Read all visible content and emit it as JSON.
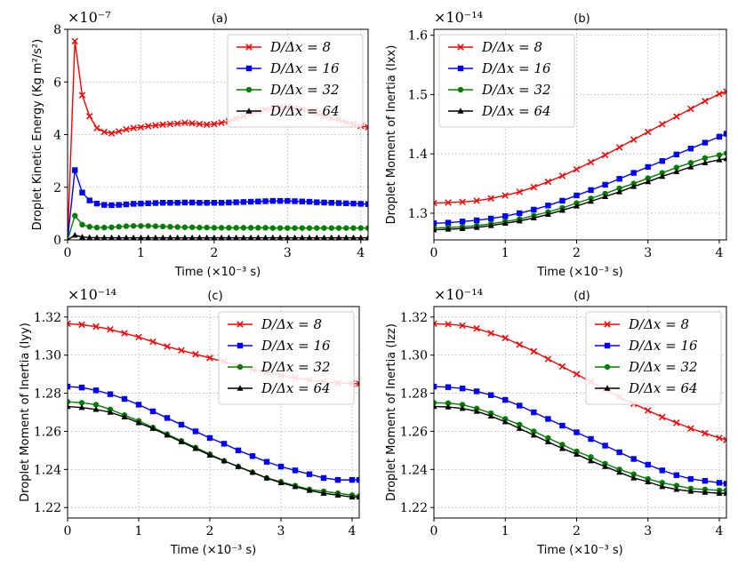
{
  "legend_labels": [
    "D/Δx = 8",
    "D/Δx = 16",
    "D/Δx = 32",
    "D/Δx = 64"
  ],
  "colors": {
    "series": [
      "#ff0000",
      "#0000ff",
      "#008000",
      "#000000"
    ]
  },
  "chart_data": [
    {
      "type": "line",
      "title": "(a)",
      "xlabel": "Time (×10⁻³ s)",
      "ylabel": "Droplet Kinetic Energy (Kg m²/s²)",
      "multiplier": "×10⁻⁷",
      "xlim": [
        0,
        4.1
      ],
      "ylim": [
        0,
        8
      ],
      "xticks": [
        0,
        1,
        2,
        3,
        4
      ],
      "yticks": [
        0,
        2,
        4,
        6,
        8
      ],
      "ytick_labels": [
        "0",
        "2",
        "4",
        "6",
        "8"
      ],
      "legend": "top-right",
      "x": [
        0,
        0.1,
        0.2,
        0.3,
        0.4,
        0.5,
        0.6,
        0.7,
        0.8,
        0.9,
        1.0,
        1.1,
        1.2,
        1.3,
        1.4,
        1.5,
        1.6,
        1.7,
        1.8,
        1.9,
        2.0,
        2.1,
        2.2,
        2.3,
        2.4,
        2.5,
        2.6,
        2.7,
        2.8,
        2.9,
        3.0,
        3.1,
        3.2,
        3.3,
        3.4,
        3.5,
        3.6,
        3.7,
        3.8,
        3.9,
        4.0,
        4.1
      ],
      "series": [
        {
          "name": "D/Δx = 8",
          "marker": "x",
          "values": [
            0,
            7.55,
            5.5,
            4.7,
            4.25,
            4.1,
            4.05,
            4.12,
            4.2,
            4.25,
            4.28,
            4.32,
            4.35,
            4.38,
            4.4,
            4.42,
            4.45,
            4.43,
            4.4,
            4.38,
            4.4,
            4.45,
            4.5,
            4.6,
            4.7,
            4.8,
            4.88,
            4.95,
            5.0,
            5.05,
            5.05,
            5.0,
            4.95,
            4.88,
            4.8,
            4.72,
            4.62,
            4.55,
            4.47,
            4.4,
            4.33,
            4.28
          ]
        },
        {
          "name": "D/Δx = 16",
          "marker": "square",
          "values": [
            0,
            2.65,
            1.8,
            1.5,
            1.38,
            1.33,
            1.32,
            1.33,
            1.35,
            1.37,
            1.38,
            1.39,
            1.4,
            1.41,
            1.41,
            1.41,
            1.42,
            1.42,
            1.41,
            1.41,
            1.41,
            1.41,
            1.42,
            1.43,
            1.44,
            1.45,
            1.46,
            1.47,
            1.48,
            1.48,
            1.48,
            1.47,
            1.46,
            1.45,
            1.43,
            1.42,
            1.41,
            1.4,
            1.39,
            1.38,
            1.37,
            1.36
          ]
        },
        {
          "name": "D/Δx = 32",
          "marker": "circle",
          "values": [
            0,
            0.92,
            0.58,
            0.5,
            0.47,
            0.47,
            0.48,
            0.5,
            0.52,
            0.53,
            0.53,
            0.53,
            0.52,
            0.51,
            0.5,
            0.49,
            0.48,
            0.48,
            0.47,
            0.47,
            0.46,
            0.46,
            0.46,
            0.46,
            0.46,
            0.46,
            0.46,
            0.46,
            0.45,
            0.45,
            0.45,
            0.45,
            0.45,
            0.45,
            0.45,
            0.45,
            0.45,
            0.45,
            0.45,
            0.45,
            0.45,
            0.45
          ]
        },
        {
          "name": "D/Δx = 64",
          "marker": "triangle",
          "values": [
            0,
            0.18,
            0.11,
            0.09,
            0.08,
            0.08,
            0.08,
            0.08,
            0.08,
            0.08,
            0.08,
            0.08,
            0.08,
            0.08,
            0.08,
            0.08,
            0.08,
            0.08,
            0.08,
            0.08,
            0.08,
            0.08,
            0.08,
            0.08,
            0.08,
            0.08,
            0.08,
            0.08,
            0.08,
            0.08,
            0.08,
            0.08,
            0.08,
            0.08,
            0.08,
            0.08,
            0.08,
            0.08,
            0.08,
            0.08,
            0.08,
            0.08
          ]
        }
      ]
    },
    {
      "type": "line",
      "title": "(b)",
      "xlabel": "Time (×10⁻³ s)",
      "ylabel": "Droplet Moment of Inertia (Ixx)",
      "multiplier": "×10⁻¹⁴",
      "xlim": [
        0,
        4.1
      ],
      "ylim": [
        1.255,
        1.61
      ],
      "xticks": [
        0,
        1,
        2,
        3,
        4
      ],
      "yticks": [
        1.3,
        1.4,
        1.5,
        1.6
      ],
      "ytick_labels": [
        "1.3",
        "1.4",
        "1.5",
        "1.6"
      ],
      "legend": "top-left",
      "x": [
        0,
        0.2,
        0.4,
        0.6,
        0.8,
        1.0,
        1.2,
        1.4,
        1.6,
        1.8,
        2.0,
        2.2,
        2.4,
        2.6,
        2.8,
        3.0,
        3.2,
        3.4,
        3.6,
        3.8,
        4.0,
        4.1
      ],
      "series": [
        {
          "name": "D/Δx = 8",
          "marker": "x",
          "values": [
            1.317,
            1.318,
            1.319,
            1.321,
            1.325,
            1.33,
            1.336,
            1.344,
            1.353,
            1.363,
            1.374,
            1.386,
            1.398,
            1.411,
            1.424,
            1.437,
            1.45,
            1.463,
            1.476,
            1.489,
            1.501,
            1.505
          ]
        },
        {
          "name": "D/Δx = 16",
          "marker": "square",
          "values": [
            1.283,
            1.284,
            1.286,
            1.288,
            1.291,
            1.295,
            1.3,
            1.306,
            1.313,
            1.321,
            1.33,
            1.339,
            1.348,
            1.358,
            1.368,
            1.378,
            1.388,
            1.399,
            1.409,
            1.419,
            1.429,
            1.434
          ]
        },
        {
          "name": "D/Δx = 32",
          "marker": "circle",
          "values": [
            1.275,
            1.276,
            1.277,
            1.279,
            1.282,
            1.286,
            1.29,
            1.296,
            1.302,
            1.309,
            1.317,
            1.325,
            1.333,
            1.342,
            1.35,
            1.359,
            1.368,
            1.377,
            1.385,
            1.393,
            1.398,
            1.401
          ]
        },
        {
          "name": "D/Δx = 64",
          "marker": "triangle",
          "values": [
            1.272,
            1.273,
            1.274,
            1.276,
            1.279,
            1.283,
            1.287,
            1.292,
            1.298,
            1.305,
            1.312,
            1.32,
            1.328,
            1.336,
            1.345,
            1.353,
            1.362,
            1.37,
            1.378,
            1.385,
            1.39,
            1.392
          ]
        }
      ]
    },
    {
      "type": "line",
      "title": "(c)",
      "xlabel": "Time (×10⁻³ s)",
      "ylabel": "Droplet Moment of Inertia (Iyy)",
      "multiplier": "×10⁻¹⁴",
      "xlim": [
        0,
        4.1
      ],
      "ylim": [
        1.2145,
        1.3255
      ],
      "xticks": [
        0,
        1,
        2,
        3,
        4
      ],
      "yticks": [
        1.22,
        1.24,
        1.26,
        1.28,
        1.3,
        1.32
      ],
      "ytick_labels": [
        "1.22",
        "1.24",
        "1.26",
        "1.28",
        "1.30",
        "1.32"
      ],
      "legend": "top-right",
      "x": [
        0,
        0.2,
        0.4,
        0.6,
        0.8,
        1.0,
        1.2,
        1.4,
        1.6,
        1.8,
        2.0,
        2.2,
        2.4,
        2.6,
        2.8,
        3.0,
        3.2,
        3.4,
        3.6,
        3.8,
        4.0,
        4.1
      ],
      "series": [
        {
          "name": "D/Δx = 8",
          "marker": "x",
          "values": [
            1.3165,
            1.316,
            1.315,
            1.3135,
            1.3115,
            1.3095,
            1.307,
            1.3045,
            1.3025,
            1.3005,
            1.2985,
            1.2965,
            1.2945,
            1.2925,
            1.291,
            1.2895,
            1.288,
            1.287,
            1.286,
            1.2855,
            1.285,
            1.285
          ]
        },
        {
          "name": "D/Δx = 16",
          "marker": "square",
          "values": [
            1.2835,
            1.283,
            1.2815,
            1.2795,
            1.277,
            1.274,
            1.2705,
            1.267,
            1.2635,
            1.26,
            1.2565,
            1.2535,
            1.25,
            1.247,
            1.244,
            1.2415,
            1.2395,
            1.2375,
            1.2355,
            1.2345,
            1.2345,
            1.2345
          ]
        },
        {
          "name": "D/Δx = 32",
          "marker": "circle",
          "values": [
            1.2755,
            1.275,
            1.274,
            1.2715,
            1.2685,
            1.2655,
            1.262,
            1.2585,
            1.255,
            1.2515,
            1.248,
            1.2445,
            1.2415,
            1.2385,
            1.2355,
            1.2335,
            1.2315,
            1.2295,
            1.2285,
            1.2275,
            1.2265,
            1.226
          ]
        },
        {
          "name": "D/Δx = 64",
          "marker": "triangle",
          "values": [
            1.273,
            1.2725,
            1.2715,
            1.27,
            1.2675,
            1.2645,
            1.2615,
            1.258,
            1.2545,
            1.251,
            1.2475,
            1.2445,
            1.2415,
            1.2385,
            1.2355,
            1.233,
            1.231,
            1.229,
            1.2275,
            1.2265,
            1.2255,
            1.2255
          ]
        }
      ]
    },
    {
      "type": "line",
      "title": "(d)",
      "xlabel": "Time (×10⁻³ s)",
      "ylabel": "Droplet Moment of Inertia (Izz)",
      "multiplier": "×10⁻¹⁴",
      "xlim": [
        0,
        4.1
      ],
      "ylim": [
        1.2145,
        1.3255
      ],
      "xticks": [
        0,
        1,
        2,
        3,
        4
      ],
      "yticks": [
        1.22,
        1.24,
        1.26,
        1.28,
        1.3,
        1.32
      ],
      "ytick_labels": [
        "1.22",
        "1.24",
        "1.26",
        "1.28",
        "1.30",
        "1.32"
      ],
      "legend": "top-right",
      "x": [
        0,
        0.2,
        0.4,
        0.6,
        0.8,
        1.0,
        1.2,
        1.4,
        1.6,
        1.8,
        2.0,
        2.2,
        2.4,
        2.6,
        2.8,
        3.0,
        3.2,
        3.4,
        3.6,
        3.8,
        4.0,
        4.1
      ],
      "series": [
        {
          "name": "D/Δx = 8",
          "marker": "x",
          "values": [
            1.3165,
            1.3162,
            1.3155,
            1.314,
            1.3115,
            1.309,
            1.3055,
            1.302,
            1.298,
            1.294,
            1.29,
            1.286,
            1.282,
            1.278,
            1.2745,
            1.271,
            1.2675,
            1.2645,
            1.2615,
            1.259,
            1.2565,
            1.2555
          ]
        },
        {
          "name": "D/Δx = 16",
          "marker": "square",
          "values": [
            1.2835,
            1.2832,
            1.2825,
            1.281,
            1.279,
            1.2765,
            1.2735,
            1.27,
            1.2665,
            1.263,
            1.2595,
            1.256,
            1.2525,
            1.249,
            1.2455,
            1.2425,
            1.2395,
            1.237,
            1.235,
            1.234,
            1.233,
            1.2325
          ]
        },
        {
          "name": "D/Δx = 32",
          "marker": "circle",
          "values": [
            1.275,
            1.2748,
            1.274,
            1.272,
            1.2695,
            1.2665,
            1.2635,
            1.26,
            1.2565,
            1.253,
            1.2495,
            1.2465,
            1.243,
            1.24,
            1.2375,
            1.235,
            1.233,
            1.2315,
            1.23,
            1.2295,
            1.229,
            1.229
          ]
        },
        {
          "name": "D/Δx = 64",
          "marker": "triangle",
          "values": [
            1.273,
            1.2728,
            1.272,
            1.2705,
            1.268,
            1.265,
            1.2615,
            1.258,
            1.2545,
            1.251,
            1.248,
            1.2445,
            1.2415,
            1.2385,
            1.2355,
            1.2335,
            1.231,
            1.2295,
            1.2285,
            1.228,
            1.2275,
            1.2275
          ]
        }
      ]
    }
  ]
}
